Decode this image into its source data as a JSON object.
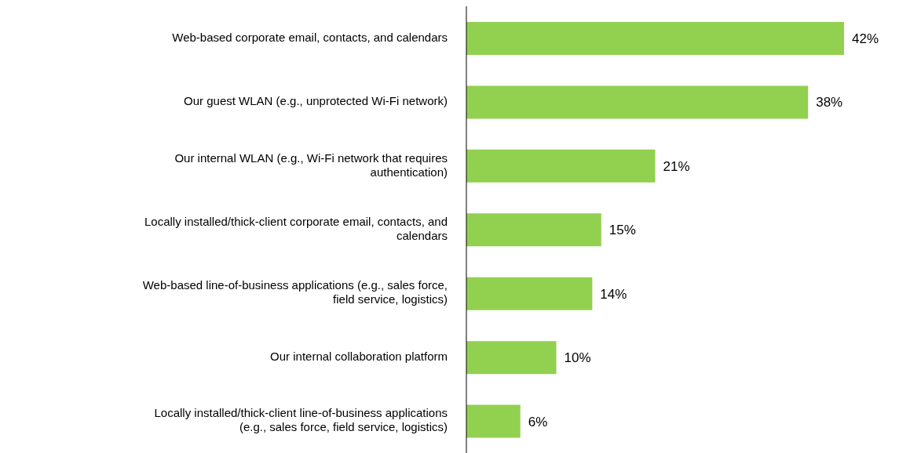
{
  "chart_data": {
    "type": "bar",
    "orientation": "horizontal",
    "categories": [
      "Web-based corporate email, contacts, and calendars",
      "Our guest WLAN (e.g., unprotected Wi-Fi network)",
      "Our internal WLAN (e.g., Wi-Fi network that requires authentication)",
      "Locally installed/thick-client corporate email, contacts, and calendars",
      "Web-based line-of-business applications (e.g., sales force, field service, logistics)",
      "Our internal collaboration platform",
      "Locally installed/thick-client line-of-business applications (e.g., sales force, field service, logistics)"
    ],
    "values": [
      42,
      38,
      21,
      15,
      14,
      10,
      6
    ],
    "value_labels": [
      "42%",
      "38%",
      "21%",
      "15%",
      "14%",
      "10%",
      "6%"
    ],
    "color": "#92d050"
  }
}
